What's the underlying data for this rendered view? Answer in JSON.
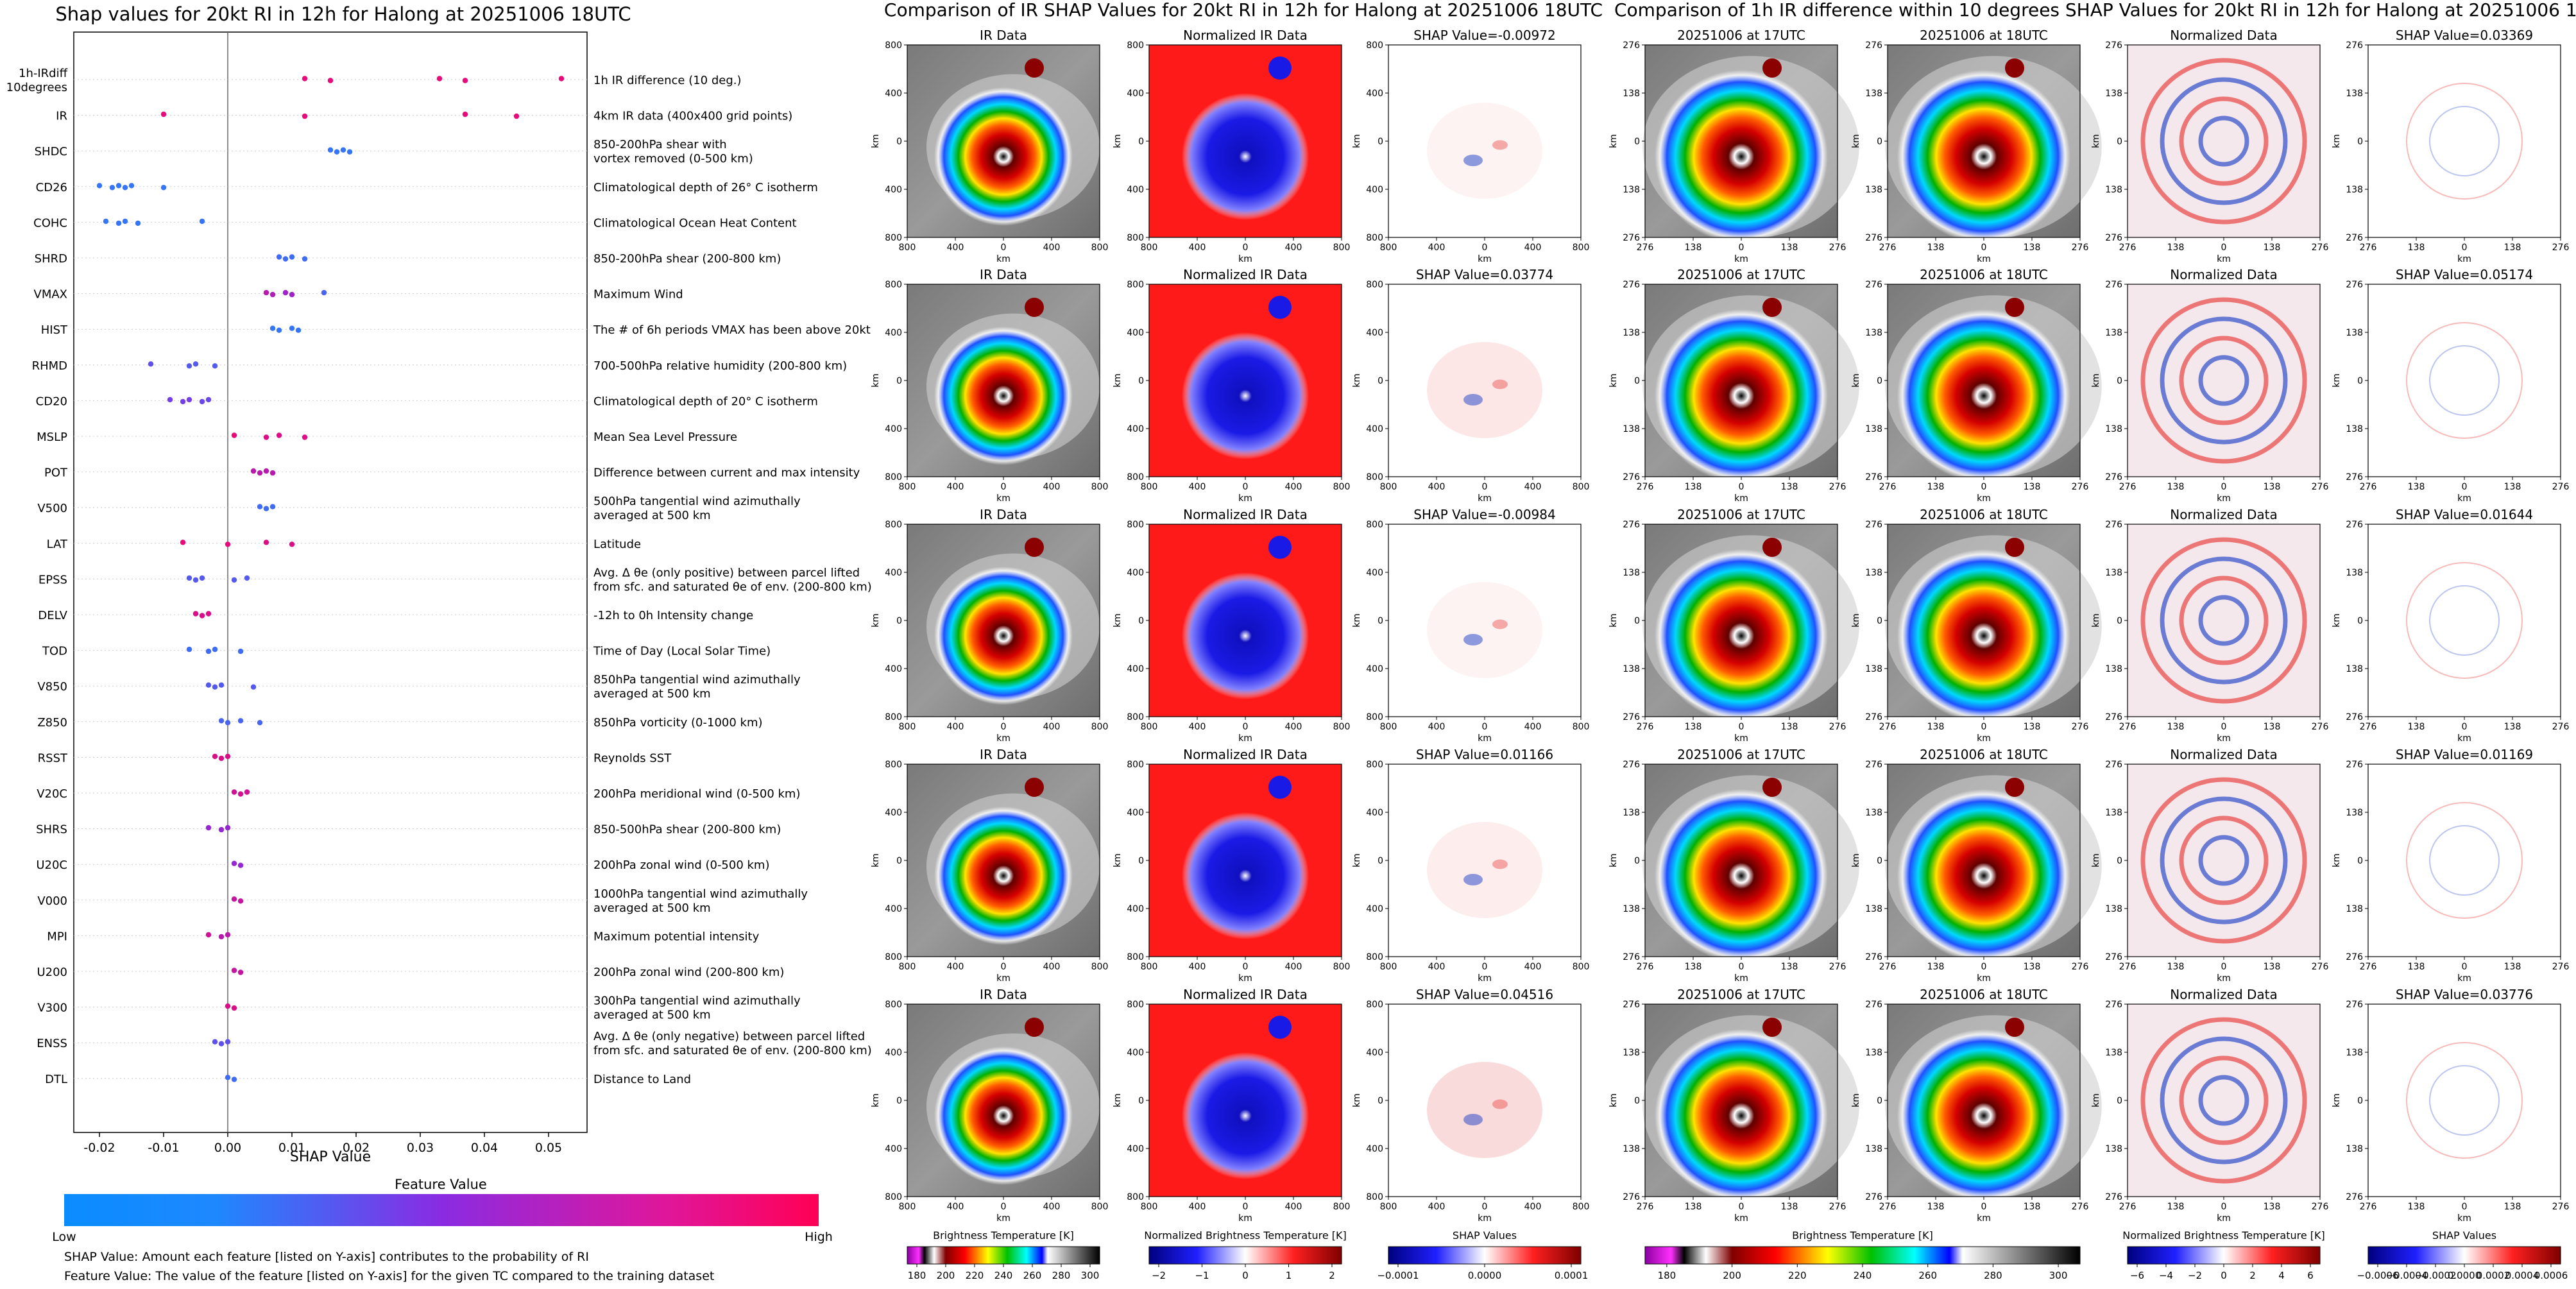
{
  "colors": {
    "feature_low": "#1e88ff",
    "feature_mid": "#8a2be2",
    "feature_high": "#ff0060",
    "tc_core": "#8b0000",
    "shap_positive": "#e53935",
    "shap_negative": "#1e40c8",
    "norm_background": "#ff1a1a",
    "norm_eye": "#1a1ae6"
  },
  "footer": {
    "shap_note": "SHAP Value: Amount each feature [listed on Y-axis] contributes to the probability of RI",
    "feature_note": "Feature Value: The value of the feature [listed on Y-axis] for the given TC compared to the training dataset"
  },
  "chart_data": [
    {
      "type": "scatter",
      "title": "Shap values for 20kt RI in 12h for Halong at 20251006 18UTC",
      "xlabel": "SHAP Value",
      "xlim": [
        -0.024,
        0.056
      ],
      "xticks": [
        "-0.02",
        "-0.01",
        "0.00",
        "0.01",
        "0.02",
        "0.03",
        "0.04",
        "0.05"
      ],
      "xtick_values": [
        -0.02,
        -0.01,
        0.0,
        0.01,
        0.02,
        0.03,
        0.04,
        0.05
      ],
      "colorbar": {
        "label": "Feature Value",
        "low": "Low",
        "high": "High"
      },
      "features": [
        {
          "name": "1h-IRdiff\n10degrees",
          "desc": "1h IR difference (10 deg.)",
          "points": [
            [
              0.012,
              0.9
            ],
            [
              0.016,
              0.9
            ],
            [
              0.033,
              0.9
            ],
            [
              0.037,
              0.9
            ],
            [
              0.052,
              0.9
            ]
          ]
        },
        {
          "name": "IR",
          "desc": "4km IR data (400x400 grid points)",
          "points": [
            [
              -0.01,
              0.9
            ],
            [
              0.012,
              0.9
            ],
            [
              0.037,
              0.9
            ],
            [
              0.045,
              0.9
            ]
          ]
        },
        {
          "name": "SHDC",
          "desc": "850-200hPa shear with\nvortex removed (0-500 km)",
          "points": [
            [
              0.016,
              0.1
            ],
            [
              0.017,
              0.1
            ],
            [
              0.018,
              0.1
            ],
            [
              0.019,
              0.1
            ]
          ]
        },
        {
          "name": "CD26",
          "desc": "Climatological depth of 26° C isotherm",
          "points": [
            [
              -0.02,
              0.1
            ],
            [
              -0.018,
              0.1
            ],
            [
              -0.017,
              0.1
            ],
            [
              -0.016,
              0.1
            ],
            [
              -0.015,
              0.1
            ],
            [
              -0.01,
              0.1
            ]
          ]
        },
        {
          "name": "COHC",
          "desc": "Climatological Ocean Heat Content",
          "points": [
            [
              -0.019,
              0.1
            ],
            [
              -0.017,
              0.1
            ],
            [
              -0.016,
              0.1
            ],
            [
              -0.014,
              0.1
            ],
            [
              -0.004,
              0.1
            ]
          ]
        },
        {
          "name": "SHRD",
          "desc": "850-200hPa shear (200-800 km)",
          "points": [
            [
              0.008,
              0.15
            ],
            [
              0.009,
              0.15
            ],
            [
              0.01,
              0.15
            ],
            [
              0.012,
              0.15
            ]
          ]
        },
        {
          "name": "VMAX",
          "desc": "Maximum Wind",
          "points": [
            [
              0.006,
              0.7
            ],
            [
              0.007,
              0.65
            ],
            [
              0.009,
              0.6
            ],
            [
              0.01,
              0.6
            ],
            [
              0.015,
              0.2
            ]
          ]
        },
        {
          "name": "HIST",
          "desc": "The # of 6h periods VMAX has been above 20kt",
          "points": [
            [
              0.007,
              0.1
            ],
            [
              0.008,
              0.1
            ],
            [
              0.01,
              0.1
            ],
            [
              0.011,
              0.1
            ]
          ]
        },
        {
          "name": "RHMD",
          "desc": "700-500hPa relative humidity (200-800 km)",
          "points": [
            [
              -0.012,
              0.3
            ],
            [
              -0.006,
              0.25
            ],
            [
              -0.005,
              0.25
            ],
            [
              -0.002,
              0.25
            ]
          ]
        },
        {
          "name": "CD20",
          "desc": "Climatological depth of 20° C isotherm",
          "points": [
            [
              -0.009,
              0.4
            ],
            [
              -0.007,
              0.4
            ],
            [
              -0.006,
              0.4
            ],
            [
              -0.004,
              0.35
            ],
            [
              -0.003,
              0.35
            ]
          ]
        },
        {
          "name": "MSLP",
          "desc": "Mean Sea Level Pressure",
          "points": [
            [
              0.001,
              0.9
            ],
            [
              0.006,
              0.85
            ],
            [
              0.008,
              0.85
            ],
            [
              0.012,
              0.85
            ]
          ]
        },
        {
          "name": "POT",
          "desc": "Difference between current and max intensity",
          "points": [
            [
              0.004,
              0.7
            ],
            [
              0.005,
              0.7
            ],
            [
              0.006,
              0.7
            ],
            [
              0.007,
              0.7
            ]
          ]
        },
        {
          "name": "V500",
          "desc": "500hPa tangential wind azimuthally\naveraged at 500 km",
          "points": [
            [
              0.005,
              0.15
            ],
            [
              0.006,
              0.15
            ],
            [
              0.007,
              0.15
            ]
          ]
        },
        {
          "name": "LAT",
          "desc": "Latitude",
          "points": [
            [
              -0.007,
              0.9
            ],
            [
              0.0,
              0.9
            ],
            [
              0.006,
              0.85
            ],
            [
              0.01,
              0.85
            ]
          ]
        },
        {
          "name": "EPSS",
          "desc": "Avg. Δ θe (only positive) between parcel lifted\nfrom sfc. and saturated θe of env. (200-800 km)",
          "points": [
            [
              -0.006,
              0.25
            ],
            [
              -0.005,
              0.25
            ],
            [
              -0.004,
              0.25
            ],
            [
              0.001,
              0.25
            ],
            [
              0.003,
              0.25
            ]
          ]
        },
        {
          "name": "DELV",
          "desc": "-12h to 0h Intensity change",
          "points": [
            [
              -0.005,
              0.85
            ],
            [
              -0.004,
              0.85
            ],
            [
              -0.003,
              0.85
            ]
          ]
        },
        {
          "name": "TOD",
          "desc": "Time of Day (Local Solar Time)",
          "points": [
            [
              -0.006,
              0.15
            ],
            [
              -0.003,
              0.15
            ],
            [
              -0.002,
              0.15
            ],
            [
              0.002,
              0.15
            ]
          ]
        },
        {
          "name": "V850",
          "desc": "850hPa tangential wind azimuthally\naveraged at 500 km",
          "points": [
            [
              -0.003,
              0.25
            ],
            [
              -0.002,
              0.25
            ],
            [
              -0.001,
              0.25
            ],
            [
              0.004,
              0.25
            ]
          ]
        },
        {
          "name": "Z850",
          "desc": "850hPa vorticity (0-1000 km)",
          "points": [
            [
              -0.001,
              0.2
            ],
            [
              0.0,
              0.2
            ],
            [
              0.002,
              0.2
            ],
            [
              0.005,
              0.2
            ]
          ]
        },
        {
          "name": "RSST",
          "desc": "Reynolds SST",
          "points": [
            [
              -0.002,
              0.85
            ],
            [
              -0.001,
              0.85
            ],
            [
              0.0,
              0.85
            ]
          ]
        },
        {
          "name": "V20C",
          "desc": "200hPa meridional wind (0-500 km)",
          "points": [
            [
              0.001,
              0.8
            ],
            [
              0.002,
              0.8
            ],
            [
              0.003,
              0.8
            ]
          ]
        },
        {
          "name": "SHRS",
          "desc": "850-500hPa shear (200-800 km)",
          "points": [
            [
              -0.003,
              0.55
            ],
            [
              -0.001,
              0.55
            ],
            [
              0.0,
              0.55
            ]
          ]
        },
        {
          "name": "U20C",
          "desc": "200hPa zonal wind (0-500 km)",
          "points": [
            [
              0.001,
              0.55
            ],
            [
              0.002,
              0.55
            ]
          ]
        },
        {
          "name": "V000",
          "desc": "1000hPa tangential wind azimuthally\naveraged at 500 km",
          "points": [
            [
              0.001,
              0.75
            ],
            [
              0.002,
              0.75
            ]
          ]
        },
        {
          "name": "MPI",
          "desc": "Maximum potential intensity",
          "points": [
            [
              -0.003,
              0.8
            ],
            [
              -0.001,
              0.7
            ],
            [
              0.0,
              0.7
            ]
          ]
        },
        {
          "name": "U200",
          "desc": "200hPa zonal wind (200-800 km)",
          "points": [
            [
              0.001,
              0.75
            ],
            [
              0.002,
              0.75
            ]
          ]
        },
        {
          "name": "V300",
          "desc": "300hPa tangential wind azimuthally\naveraged at 500 km",
          "points": [
            [
              0.0,
              0.85
            ],
            [
              0.001,
              0.85
            ]
          ]
        },
        {
          "name": "ENSS",
          "desc": "Avg. Δ θe (only negative) between parcel lifted\nfrom sfc. and saturated θe of env. (200-800 km)",
          "points": [
            [
              -0.002,
              0.3
            ],
            [
              -0.001,
              0.3
            ],
            [
              0.0,
              0.3
            ]
          ]
        },
        {
          "name": "DTL",
          "desc": "Distance to Land",
          "points": [
            [
              0.0,
              0.15
            ],
            [
              0.001,
              0.15
            ]
          ]
        }
      ]
    },
    {
      "type": "heatmap",
      "title": "Comparison of IR SHAP Values for 20kt RI in 12h for Halong at 20251006 18UTC",
      "xlabel": "km",
      "ylabel": "km",
      "ticks": [
        "800",
        "400",
        "0",
        "400",
        "800"
      ],
      "columns": [
        "IR Data",
        "Normalized IR Data"
      ],
      "shap_titles": [
        "SHAP Value=-0.00972",
        "SHAP Value=0.03774",
        "SHAP Value=-0.00984",
        "SHAP Value=0.01166",
        "SHAP Value=0.04516"
      ],
      "colorbars": [
        {
          "label": "Brightness Temperature [K]",
          "ticks": [
            "180",
            "200",
            "220",
            "240",
            "260",
            "280",
            "300"
          ]
        },
        {
          "label": "Normalized Brightness Temperature [K]",
          "ticks": [
            "−2",
            "−1",
            "0",
            "1",
            "2"
          ]
        },
        {
          "label": "SHAP Values",
          "ticks": [
            "−0.0001",
            "0.0000",
            "0.0001"
          ]
        }
      ]
    },
    {
      "type": "heatmap",
      "title": "Comparison of 1h IR difference within 10 degrees SHAP Values for 20kt RI in 12h for Halong at 20251006 18UTC",
      "xlabel": "km",
      "ylabel": "km",
      "ticks": [
        "276",
        "138",
        "0",
        "138",
        "276"
      ],
      "columns": [
        "20251006 at 17UTC",
        "20251006 at 18UTC",
        "Normalized Data"
      ],
      "shap_titles": [
        "SHAP Value=0.03369",
        "SHAP Value=0.05174",
        "SHAP Value=0.01644",
        "SHAP Value=0.01169",
        "SHAP Value=0.03776"
      ],
      "colorbars": [
        {
          "label": "Brightness Temperature [K]",
          "ticks": [
            "180",
            "200",
            "220",
            "240",
            "260",
            "280",
            "300"
          ]
        },
        {
          "label": "Normalized Brightness Temperature [K]",
          "ticks": [
            "−6",
            "−4",
            "−2",
            "0",
            "2",
            "4",
            "6"
          ]
        },
        {
          "label": "SHAP Values",
          "ticks": [
            "−0.0006",
            "−0.0004",
            "−0.0002",
            "0.0000",
            "0.0002",
            "0.0004",
            "0.0006"
          ]
        }
      ]
    }
  ]
}
